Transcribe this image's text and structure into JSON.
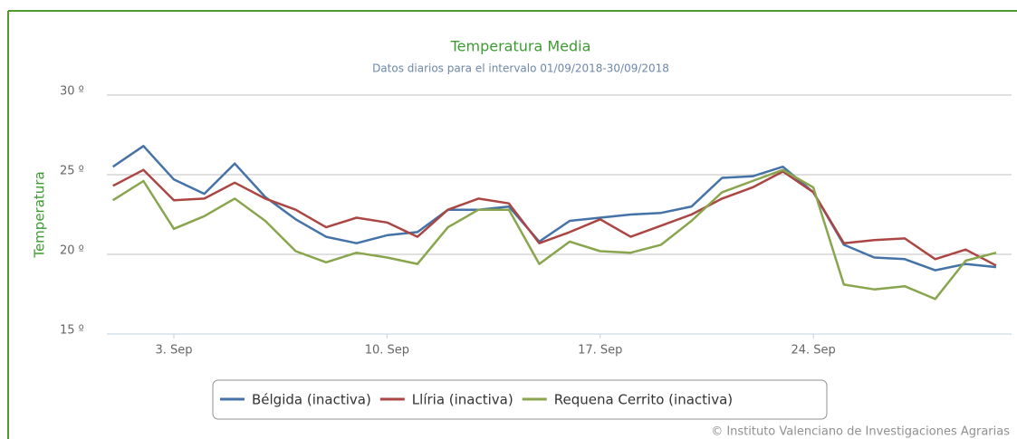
{
  "chart_data": {
    "type": "line",
    "title": "Temperatura Media",
    "subtitle": "Datos diarios para el intervalo 01/09/2018-30/09/2018",
    "y_label": "Temperatura",
    "credits": "© Instituto Valenciano de Investigaciones Agrarias",
    "x": [
      1,
      2,
      3,
      4,
      5,
      6,
      7,
      8,
      9,
      10,
      11,
      12,
      13,
      14,
      15,
      16,
      17,
      18,
      19,
      20,
      21,
      22,
      23,
      24,
      25,
      26,
      27,
      28,
      29,
      30
    ],
    "xlim": [
      0.8,
      30.3
    ],
    "xticks": [
      {
        "value": 3,
        "label": "3. Sep"
      },
      {
        "value": 10,
        "label": "10. Sep"
      },
      {
        "value": 17,
        "label": "17. Sep"
      },
      {
        "value": 24,
        "label": "24. Sep"
      }
    ],
    "ylim": [
      15,
      30
    ],
    "yticks": [
      {
        "value": 15,
        "label": "15 º"
      },
      {
        "value": 20,
        "label": "20 º"
      },
      {
        "value": 25,
        "label": "25 º"
      },
      {
        "value": 30,
        "label": "30 º"
      }
    ],
    "grid": true,
    "legend": "bottom",
    "series": [
      {
        "name": "Bélgida (inactiva)",
        "color": "#4572a7",
        "values": [
          25.5,
          26.8,
          24.7,
          23.8,
          25.7,
          23.6,
          22.2,
          21.1,
          20.7,
          21.2,
          21.4,
          22.8,
          22.8,
          23.0,
          20.8,
          22.1,
          22.3,
          22.5,
          22.6,
          23.0,
          24.8,
          24.9,
          25.5,
          23.9,
          20.6,
          19.8,
          19.7,
          19.0,
          19.4,
          19.2
        ]
      },
      {
        "name": "Llíria (inactiva)",
        "color": "#aa4643",
        "values": [
          24.3,
          25.3,
          23.4,
          23.5,
          24.5,
          23.5,
          22.8,
          21.7,
          22.3,
          22.0,
          21.1,
          22.8,
          23.5,
          23.2,
          20.7,
          21.4,
          22.2,
          21.1,
          21.8,
          22.5,
          23.5,
          24.2,
          25.2,
          23.9,
          20.7,
          20.9,
          21.0,
          19.7,
          20.3,
          19.3
        ]
      },
      {
        "name": "Requena Cerrito (inactiva)",
        "color": "#89a54e",
        "values": [
          23.4,
          24.6,
          21.6,
          22.4,
          23.5,
          22.1,
          20.2,
          19.5,
          20.1,
          19.8,
          19.4,
          21.7,
          22.8,
          22.8,
          19.4,
          20.8,
          20.2,
          20.1,
          20.6,
          22.1,
          23.9,
          24.6,
          25.3,
          24.2,
          18.1,
          17.8,
          18.0,
          17.2,
          19.6,
          20.1
        ]
      }
    ]
  }
}
